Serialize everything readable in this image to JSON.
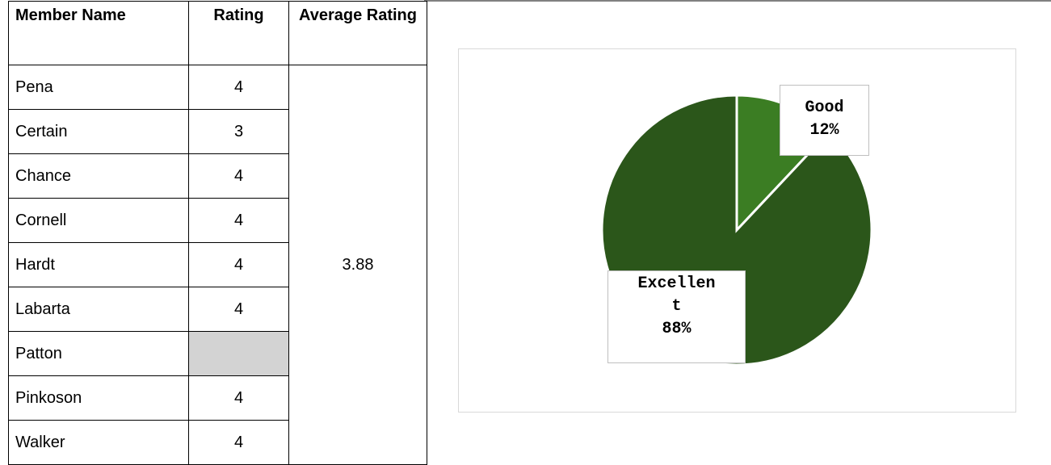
{
  "table": {
    "headers": [
      "Member Name",
      "Rating",
      "Average Rating"
    ],
    "rows": [
      [
        "Pena",
        4
      ],
      [
        "Certain",
        3
      ],
      [
        "Chance",
        4
      ],
      [
        "Cornell",
        4
      ],
      [
        "Hardt",
        4
      ],
      [
        "Labarta",
        4
      ],
      [
        "Patton",
        null
      ],
      [
        "Pinkoson",
        4
      ],
      [
        "Walker",
        4
      ]
    ],
    "average": 3.88
  },
  "chart_data": {
    "type": "pie",
    "categories": [
      "Good",
      "Excellent"
    ],
    "values": [
      12,
      88
    ],
    "value_labels": [
      "12%",
      "88%"
    ],
    "colors": [
      "#3b7d23",
      "#2b561a"
    ]
  }
}
